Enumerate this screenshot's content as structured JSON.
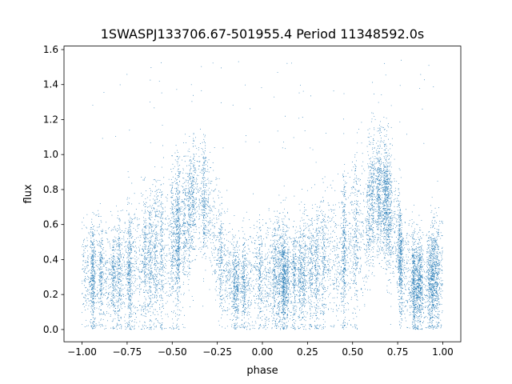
{
  "chart_data": {
    "type": "scatter",
    "title": "1SWASPJ133706.67-501955.4 Period 11348592.0s",
    "xlabel": "phase",
    "ylabel": "flux",
    "xlim": [
      -1.1,
      1.1
    ],
    "ylim": [
      -0.07,
      1.62
    ],
    "xticks": [
      -1.0,
      -0.75,
      -0.5,
      -0.25,
      0.0,
      0.25,
      0.5,
      0.75,
      1.0
    ],
    "xtick_labels": [
      "−1.00",
      "−0.75",
      "−0.50",
      "−0.25",
      "0.00",
      "0.25",
      "0.50",
      "0.75",
      "1.00"
    ],
    "yticks": [
      0.0,
      0.2,
      0.4,
      0.6,
      0.8,
      1.0,
      1.2,
      1.4,
      1.6
    ],
    "ytick_labels": [
      "0.0",
      "0.2",
      "0.4",
      "0.6",
      "0.8",
      "1.0",
      "1.2",
      "1.4",
      "1.6"
    ],
    "grid": false,
    "marker_color": "#1f77b4",
    "series": [
      {
        "x": [
          -0.97,
          -0.83,
          -0.58,
          -0.47,
          -0.37,
          -0.3,
          -0.14,
          -0.03,
          0.03,
          0.17,
          0.3,
          0.42,
          0.53,
          0.63,
          0.7,
          0.86,
          0.97,
          -1.0,
          1.0
        ],
        "y": [
          0.25,
          0.3,
          0.45,
          0.6,
          0.78,
          0.75,
          0.25,
          0.3,
          0.25,
          0.3,
          0.45,
          0.6,
          0.78,
          0.75,
          0.75,
          0.25,
          0.3,
          0.3,
          0.3
        ],
        "phase_profile": {
          "phase": [
            -1.0,
            -0.9,
            -0.85,
            -0.75,
            -0.65,
            -0.55,
            -0.45,
            -0.37,
            -0.3,
            -0.22,
            -0.15,
            -0.08,
            0.0,
            0.1,
            0.15,
            0.25,
            0.35,
            0.45,
            0.55,
            0.63,
            0.7,
            0.78,
            0.85,
            0.92,
            1.0
          ],
          "median_flux": [
            0.3,
            0.32,
            0.28,
            0.35,
            0.38,
            0.45,
            0.55,
            0.78,
            0.72,
            0.35,
            0.25,
            0.28,
            0.3,
            0.32,
            0.28,
            0.35,
            0.38,
            0.45,
            0.55,
            0.78,
            0.72,
            0.35,
            0.25,
            0.28,
            0.3
          ],
          "spread": [
            0.16,
            0.16,
            0.13,
            0.18,
            0.2,
            0.22,
            0.22,
            0.17,
            0.17,
            0.17,
            0.13,
            0.15,
            0.16,
            0.16,
            0.13,
            0.18,
            0.2,
            0.22,
            0.22,
            0.17,
            0.17,
            0.17,
            0.13,
            0.15,
            0.16
          ]
        },
        "n_points": 14000,
        "flux_range": [
          0.0,
          1.55
        ]
      }
    ]
  }
}
